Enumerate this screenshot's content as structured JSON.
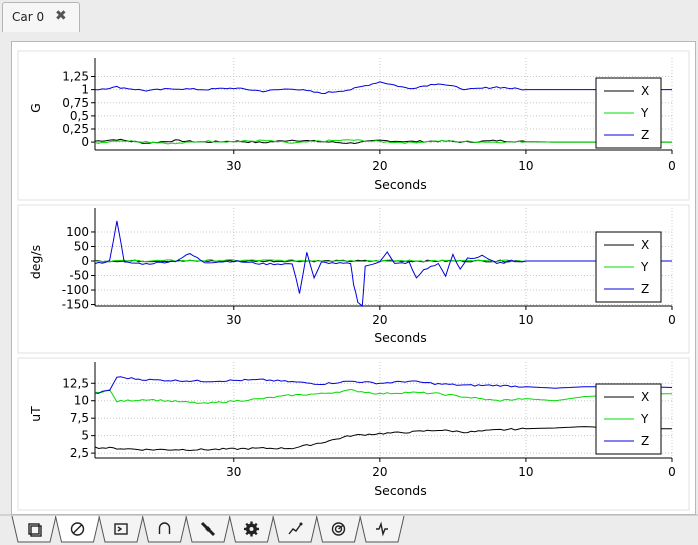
{
  "tab": {
    "title": "Car 0",
    "close_glyph": "✖"
  },
  "bottom_tabs": [
    {
      "icon": "window-icon"
    },
    {
      "icon": "no-symbol-icon"
    },
    {
      "icon": "terminal-icon"
    },
    {
      "icon": "magnet-icon"
    },
    {
      "icon": "satellite-icon"
    },
    {
      "icon": "gear-icon"
    },
    {
      "icon": "path-icon"
    },
    {
      "icon": "radar-icon"
    },
    {
      "icon": "signal-icon"
    }
  ],
  "colors": {
    "X": "#000000",
    "Y": "#00dd00",
    "Z": "#0000dd"
  },
  "chart_data": [
    {
      "type": "line",
      "xlabel": "Seconds",
      "ylabel": "G",
      "xlim": [
        39.5,
        0
      ],
      "ylim": [
        -0.15,
        1.45
      ],
      "xticks": [
        "30",
        "20",
        "10",
        "0"
      ],
      "yticks": [
        "0",
        "0,25",
        "0,5",
        "0,75",
        "1",
        "1,25"
      ],
      "legend": [
        "X",
        "Y",
        "Z"
      ],
      "legend_position": "right",
      "grid": true,
      "series": [
        {
          "name": "X",
          "x": [
            39.5,
            38,
            36,
            34,
            32,
            30,
            28,
            26,
            24,
            22,
            20,
            18,
            16,
            14,
            12,
            10,
            8,
            6,
            4,
            2,
            0
          ],
          "values": [
            0.02,
            0.05,
            -0.02,
            0.03,
            0.0,
            0.02,
            -0.01,
            0.04,
            0.01,
            -0.02,
            0.03,
            0.01,
            0.02,
            0.0,
            0.03,
            0.01,
            0.0,
            0.0,
            0.0,
            0.0,
            0.0
          ]
        },
        {
          "name": "Y",
          "x": [
            39.5,
            38,
            36,
            34,
            32,
            30,
            28,
            26,
            24,
            22,
            20,
            18,
            16,
            14,
            12,
            10,
            8,
            6,
            4,
            2,
            0
          ],
          "values": [
            -0.02,
            0.03,
            0.01,
            -0.03,
            0.02,
            0.01,
            0.03,
            -0.02,
            0.02,
            0.04,
            0.01,
            -0.01,
            0.02,
            0.01,
            0.0,
            0.01,
            0.0,
            0.0,
            0.0,
            0.0,
            0.0
          ]
        },
        {
          "name": "Z",
          "x": [
            39.5,
            38,
            36,
            34,
            32,
            30,
            28,
            26,
            24,
            22,
            20,
            18,
            16,
            14,
            12,
            10,
            8,
            6,
            4,
            2,
            0
          ],
          "values": [
            1.0,
            1.05,
            0.98,
            1.02,
            1.0,
            1.03,
            0.97,
            1.02,
            0.93,
            1.0,
            1.15,
            1.02,
            1.12,
            1.0,
            1.05,
            1.0,
            1.0,
            1.0,
            1.0,
            1.0,
            1.0
          ]
        }
      ]
    },
    {
      "type": "line",
      "xlabel": "Seconds",
      "ylabel": "deg/s",
      "xlim": [
        39.5,
        0
      ],
      "ylim": [
        -155,
        155
      ],
      "xticks": [
        "30",
        "20",
        "10",
        "0"
      ],
      "yticks": [
        "-150",
        "-100",
        "-50",
        "0",
        "50",
        "100"
      ],
      "legend": [
        "X",
        "Y",
        "Z"
      ],
      "legend_position": "right",
      "grid": true,
      "series": [
        {
          "name": "X",
          "x": [
            39.5,
            30,
            20,
            10,
            0
          ],
          "values": [
            0,
            0,
            0,
            0,
            0
          ]
        },
        {
          "name": "Y",
          "x": [
            39.5,
            30,
            20,
            10,
            0
          ],
          "values": [
            0,
            2,
            1,
            0,
            0
          ]
        },
        {
          "name": "Z",
          "x": [
            39.5,
            38.5,
            38,
            37.5,
            36,
            34,
            33,
            32,
            30,
            28,
            26,
            25.5,
            25,
            24.5,
            24,
            22,
            21.8,
            21.5,
            21.2,
            21,
            20,
            19.5,
            19,
            18,
            17.5,
            17,
            16.5,
            16,
            15.5,
            15,
            14.5,
            14,
            13.5,
            13,
            12,
            11,
            10,
            8,
            6,
            4,
            2,
            0
          ],
          "values": [
            -10,
            0,
            140,
            -5,
            -10,
            0,
            25,
            -5,
            0,
            -10,
            -10,
            -110,
            30,
            -60,
            -5,
            -10,
            -80,
            -140,
            -155,
            -20,
            0,
            30,
            -10,
            -5,
            -60,
            -30,
            -20,
            -10,
            -50,
            20,
            -30,
            10,
            10,
            20,
            -10,
            0,
            0,
            0,
            0,
            0,
            0,
            0
          ]
        }
      ]
    },
    {
      "type": "line",
      "xlabel": "Seconds",
      "ylabel": "uT",
      "xlim": [
        39.5,
        0
      ],
      "ylim": [
        1.8,
        14.4
      ],
      "xticks": [
        "30",
        "20",
        "10",
        "0"
      ],
      "yticks": [
        "2,5",
        "5",
        "7,5",
        "10",
        "12,5"
      ],
      "legend": [
        "X",
        "Y",
        "Z"
      ],
      "legend_position": "right",
      "grid": true,
      "series": [
        {
          "name": "X",
          "x": [
            39.5,
            36,
            32,
            28,
            26,
            24,
            22,
            20,
            18,
            16,
            14,
            12,
            10,
            8,
            6,
            4,
            2,
            0
          ],
          "values": [
            3.3,
            3.0,
            3.0,
            3.2,
            3.2,
            4.0,
            5.0,
            5.3,
            5.5,
            5.8,
            5.5,
            5.8,
            6.0,
            6.1,
            6.3,
            6.1,
            6.0,
            6.0
          ]
        },
        {
          "name": "Y",
          "x": [
            39.5,
            38.5,
            38,
            36,
            32,
            28,
            26,
            24,
            22,
            20,
            18,
            16,
            14,
            12,
            10,
            8,
            6,
            4,
            2,
            0
          ],
          "values": [
            11.2,
            11.5,
            9.9,
            10.2,
            9.6,
            10.3,
            10.8,
            11.0,
            11.5,
            11.0,
            11.2,
            11.0,
            10.5,
            10.0,
            10.3,
            10.0,
            10.6,
            10.8,
            11.0,
            11.0
          ]
        },
        {
          "name": "Z",
          "x": [
            39.5,
            38.5,
            38,
            36,
            32,
            28,
            26,
            24,
            22,
            20,
            18,
            16,
            14,
            12,
            10,
            8,
            6,
            4,
            2,
            0
          ],
          "values": [
            11.0,
            11.5,
            13.4,
            13.0,
            12.8,
            13.0,
            12.7,
            12.4,
            12.8,
            12.5,
            12.8,
            12.4,
            12.2,
            12.2,
            12.0,
            11.8,
            12.0,
            12.0,
            12.0,
            11.9
          ]
        }
      ]
    }
  ]
}
